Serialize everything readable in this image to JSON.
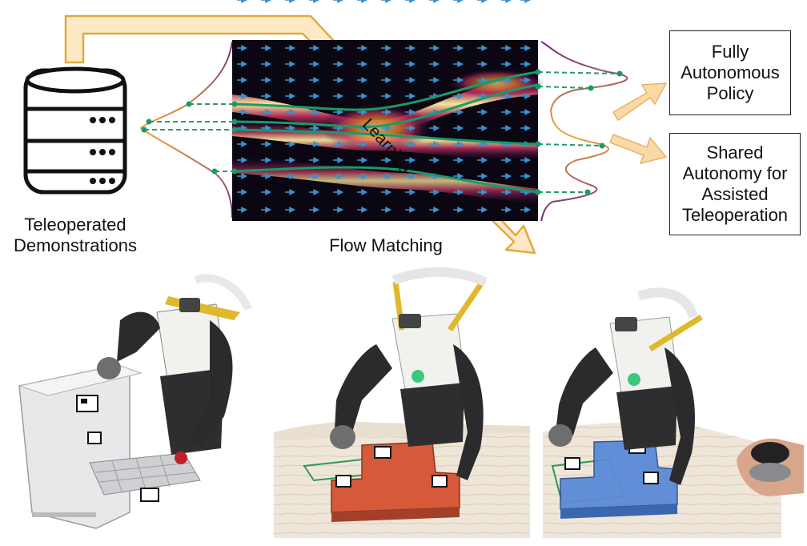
{
  "diagram": {
    "source_label": [
      "Teleoperated",
      "Demonstrations"
    ],
    "process_label": "Flow Matching",
    "learning_label": "Learning",
    "outputs": [
      {
        "lines": [
          "Fully",
          "Autonomous",
          "Policy"
        ]
      },
      {
        "lines": [
          "Shared",
          "Autonomy for",
          "Assisted",
          "Teleoperation"
        ]
      }
    ],
    "colors": {
      "learning_arrow_fill": "#fde9c6",
      "learning_arrow_stroke": "#e2aa3c",
      "output_arrow_fill": "#fad9a6",
      "trajectory": "#1a9a6a",
      "dashed": "#2a9a6a"
    }
  },
  "photos": [
    {
      "scene": "robot-dishwasher"
    },
    {
      "scene": "robot-t-block-red"
    },
    {
      "scene": "robot-t-block-blue-joystick"
    }
  ]
}
